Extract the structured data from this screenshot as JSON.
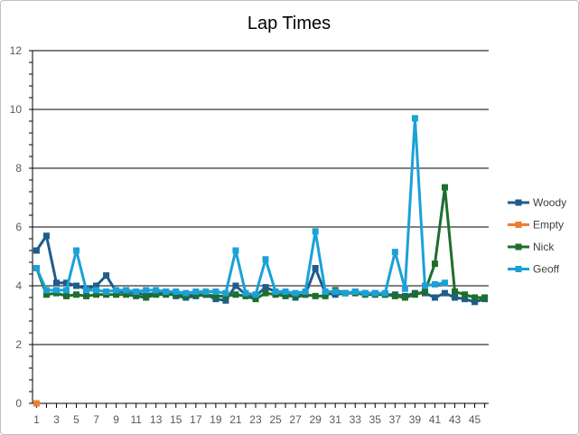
{
  "chart_data": {
    "type": "line",
    "title": "Lap Times",
    "xlabel": "",
    "ylabel": "",
    "ylim": [
      0,
      12
    ],
    "yticks": [
      0,
      2,
      4,
      6,
      8,
      10,
      12
    ],
    "xlim": [
      1,
      46
    ],
    "xticks": [
      1,
      3,
      5,
      7,
      9,
      11,
      13,
      15,
      17,
      19,
      21,
      23,
      25,
      27,
      29,
      31,
      33,
      35,
      37,
      39,
      41,
      43,
      45
    ],
    "grid": "horizontal",
    "legend_position": "right",
    "series": [
      {
        "name": "Woody",
        "color": "#1f5c8a",
        "x": [
          1,
          2,
          3,
          4,
          5,
          6,
          7,
          8,
          9,
          10,
          11,
          12,
          13,
          14,
          15,
          16,
          17,
          18,
          19,
          20,
          21,
          22,
          23,
          24,
          25,
          26,
          27,
          28,
          29,
          30,
          31,
          32,
          33,
          34,
          35,
          36,
          37,
          38,
          39,
          40,
          41,
          42,
          43,
          44,
          45,
          46
        ],
        "values": [
          5.2,
          5.7,
          4.1,
          4.1,
          4.0,
          3.9,
          4.0,
          4.35,
          3.8,
          3.8,
          3.75,
          3.7,
          3.75,
          3.8,
          3.65,
          3.6,
          3.65,
          3.7,
          3.55,
          3.5,
          4.0,
          3.7,
          3.65,
          3.95,
          3.8,
          3.75,
          3.6,
          3.7,
          4.6,
          3.75,
          3.7,
          3.75,
          3.8,
          3.75,
          3.75,
          3.7,
          3.7,
          3.65,
          3.75,
          3.75,
          3.6,
          3.75,
          3.6,
          3.55,
          3.45,
          3.55
        ]
      },
      {
        "name": "Empty",
        "color": "#ed7d31",
        "x": [
          1
        ],
        "values": [
          0
        ]
      },
      {
        "name": "Nick",
        "color": "#1e6e2e",
        "x": [
          1,
          2,
          3,
          4,
          5,
          6,
          7,
          8,
          9,
          10,
          11,
          12,
          13,
          14,
          15,
          16,
          17,
          18,
          19,
          20,
          21,
          22,
          23,
          24,
          25,
          26,
          27,
          28,
          29,
          30,
          31,
          32,
          33,
          34,
          35,
          36,
          37,
          38,
          39,
          40,
          41,
          42,
          43,
          44,
          45,
          46
        ],
        "values": [
          4.6,
          3.7,
          3.75,
          3.65,
          3.7,
          3.65,
          3.7,
          3.7,
          3.7,
          3.7,
          3.65,
          3.6,
          3.7,
          3.7,
          3.7,
          3.65,
          3.7,
          3.7,
          3.65,
          3.65,
          3.7,
          3.65,
          3.55,
          3.75,
          3.7,
          3.65,
          3.65,
          3.7,
          3.65,
          3.65,
          3.85,
          3.75,
          3.75,
          3.7,
          3.7,
          3.7,
          3.65,
          3.6,
          3.7,
          3.8,
          4.75,
          7.35,
          3.8,
          3.7,
          3.6,
          3.6
        ]
      },
      {
        "name": "Geoff",
        "color": "#1ba1d8",
        "x": [
          1,
          2,
          3,
          4,
          5,
          6,
          7,
          8,
          9,
          10,
          11,
          12,
          13,
          14,
          15,
          16,
          17,
          18,
          19,
          20,
          21,
          22,
          23,
          24,
          25,
          26,
          27,
          28,
          29,
          30,
          31,
          32,
          33,
          34,
          35,
          36,
          37,
          38,
          39,
          40,
          41,
          42
        ],
        "values": [
          4.6,
          3.85,
          3.85,
          3.85,
          5.2,
          3.85,
          3.85,
          3.8,
          3.85,
          3.85,
          3.8,
          3.85,
          3.85,
          3.8,
          3.8,
          3.75,
          3.8,
          3.8,
          3.8,
          3.75,
          5.2,
          3.75,
          3.7,
          4.9,
          3.8,
          3.8,
          3.75,
          3.8,
          5.85,
          3.8,
          3.8,
          3.75,
          3.8,
          3.75,
          3.75,
          3.75,
          5.15,
          3.9,
          9.7,
          4.0,
          4.05,
          4.1
        ]
      }
    ]
  }
}
